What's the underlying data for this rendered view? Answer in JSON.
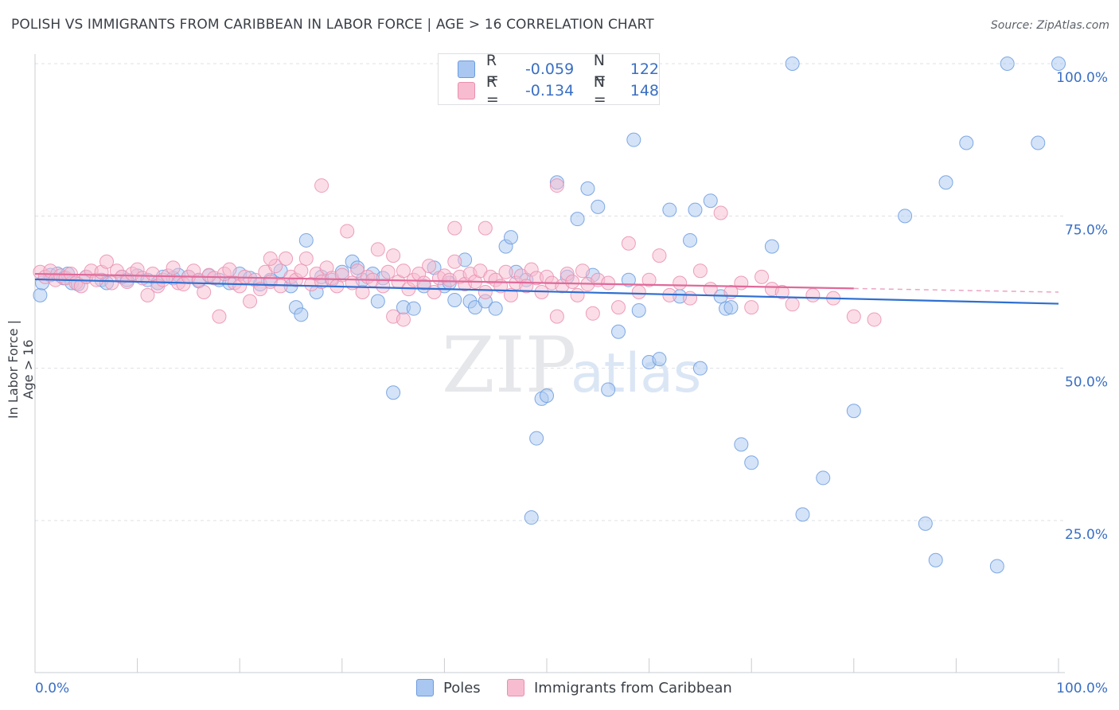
{
  "header": {
    "title": "POLISH VS IMMIGRANTS FROM CARIBBEAN IN LABOR FORCE | AGE > 16 CORRELATION CHART",
    "source": "Source: ZipAtlas.com"
  },
  "watermark": {
    "part1": "ZIP",
    "part2": "atlas"
  },
  "legend": {
    "rows": [
      {
        "r_label": "R =",
        "r_value": "-0.059",
        "n_label": "N =",
        "n_value": "122",
        "color": "#a9c7f0",
        "border": "#6b9be0"
      },
      {
        "r_label": "R =",
        "r_value": "-0.134",
        "n_label": "N =",
        "n_value": "148",
        "color": "#f7bcd0",
        "border": "#ea8fb0"
      }
    ]
  },
  "bottom_legend": [
    {
      "label": "Poles",
      "color": "#a9c7f0",
      "border": "#6b9be0"
    },
    {
      "label": "Immigrants from Caribbean",
      "color": "#f7bcd0",
      "border": "#ea8fb0"
    }
  ],
  "chart_data": {
    "type": "scatter",
    "title": "POLISH VS IMMIGRANTS FROM CARIBBEAN IN LABOR FORCE | AGE > 16 CORRELATION CHART",
    "ylabel": "In Labor Force | Age > 16",
    "xlabel": "",
    "xlim": [
      0,
      100
    ],
    "ylim": [
      0,
      102
    ],
    "x_tick_labels": [
      "0.0%",
      "100.0%"
    ],
    "y_ticks": [
      25,
      50,
      75,
      100
    ],
    "y_tick_labels": [
      "25.0%",
      "50.0%",
      "75.0%",
      "100.0%"
    ],
    "grid": true,
    "legend_position": "top-center",
    "series": [
      {
        "name": "Poles",
        "color": "#6b9be0",
        "fill": "#a9c7f0",
        "trend": {
          "x": [
            0,
            100
          ],
          "y": [
            64.6,
            60.6
          ],
          "dashed_from": null
        },
        "points": [
          [
            0.5,
            62
          ],
          [
            0.7,
            64
          ],
          [
            1.5,
            65.3
          ],
          [
            2.2,
            65.5
          ],
          [
            2.8,
            64.8
          ],
          [
            3.2,
            65.5
          ],
          [
            3.6,
            64
          ],
          [
            4.2,
            63.8
          ],
          [
            5,
            65
          ],
          [
            6.5,
            64.5
          ],
          [
            7,
            64
          ],
          [
            8.5,
            65
          ],
          [
            9,
            64.5
          ],
          [
            10,
            65.2
          ],
          [
            11,
            64.5
          ],
          [
            12,
            64
          ],
          [
            12.5,
            65
          ],
          [
            13.5,
            64.8
          ],
          [
            14,
            65.3
          ],
          [
            15,
            65
          ],
          [
            16,
            64.3
          ],
          [
            17,
            65.2
          ],
          [
            18,
            64.5
          ],
          [
            19,
            64
          ],
          [
            20,
            65.5
          ],
          [
            21,
            64.8
          ],
          [
            22,
            63.8
          ],
          [
            23,
            64.5
          ],
          [
            24,
            66
          ],
          [
            25,
            63.5
          ],
          [
            25.5,
            60
          ],
          [
            26,
            58.8
          ],
          [
            26.5,
            71
          ],
          [
            27.5,
            62.5
          ],
          [
            28,
            65
          ],
          [
            29,
            64.5
          ],
          [
            30,
            65.8
          ],
          [
            31,
            67.5
          ],
          [
            31.5,
            66.5
          ],
          [
            32,
            64.5
          ],
          [
            33,
            65.5
          ],
          [
            33.5,
            61
          ],
          [
            34,
            64.8
          ],
          [
            35,
            46
          ],
          [
            36,
            60
          ],
          [
            37,
            59.8
          ],
          [
            38,
            63.5
          ],
          [
            39,
            66.5
          ],
          [
            40,
            63.5
          ],
          [
            40.5,
            64
          ],
          [
            41,
            61.2
          ],
          [
            42,
            67.8
          ],
          [
            42.5,
            61
          ],
          [
            43,
            60
          ],
          [
            44,
            61
          ],
          [
            45,
            59.8
          ],
          [
            46,
            70
          ],
          [
            46.5,
            71.5
          ],
          [
            47,
            65.8
          ],
          [
            48,
            64.5
          ],
          [
            48.5,
            25.5
          ],
          [
            49,
            38.5
          ],
          [
            49.5,
            45
          ],
          [
            50,
            45.5
          ],
          [
            51,
            80.5
          ],
          [
            52,
            65
          ],
          [
            53,
            74.5
          ],
          [
            54,
            79.5
          ],
          [
            54.5,
            65.3
          ],
          [
            55,
            76.5
          ],
          [
            56,
            46.5
          ],
          [
            57,
            56
          ],
          [
            58,
            64.5
          ],
          [
            58.5,
            87.5
          ],
          [
            59,
            59.5
          ],
          [
            60,
            51
          ],
          [
            61,
            51.5
          ],
          [
            62,
            76
          ],
          [
            63,
            61.8
          ],
          [
            64,
            71
          ],
          [
            64.5,
            76
          ],
          [
            65,
            50
          ],
          [
            66,
            77.5
          ],
          [
            67,
            61.8
          ],
          [
            67.5,
            59.8
          ],
          [
            68,
            60
          ],
          [
            69,
            37.5
          ],
          [
            70,
            34.5
          ],
          [
            72,
            70
          ],
          [
            75,
            26
          ],
          [
            77,
            32
          ],
          [
            80,
            43
          ],
          [
            85,
            75
          ],
          [
            87,
            24.5
          ],
          [
            88,
            18.5
          ],
          [
            89,
            80.5
          ],
          [
            91,
            87
          ],
          [
            94,
            17.5
          ],
          [
            98,
            87
          ],
          [
            74,
            100
          ],
          [
            95,
            100
          ],
          [
            100,
            100
          ]
        ]
      },
      {
        "name": "Immigrants from Caribbean",
        "color": "#ea8fb0",
        "fill": "#f7bcd0",
        "trend": {
          "x": [
            0,
            100
          ],
          "y": [
            65.5,
            62.5
          ],
          "dashed_from": 80
        },
        "points": [
          [
            0.5,
            65.8
          ],
          [
            1,
            65
          ],
          [
            1.5,
            66
          ],
          [
            2,
            64.5
          ],
          [
            2.5,
            65.2
          ],
          [
            3,
            64.8
          ],
          [
            3.5,
            65.5
          ],
          [
            4,
            64
          ],
          [
            4.5,
            63.5
          ],
          [
            5,
            65
          ],
          [
            5.5,
            66
          ],
          [
            6,
            64.5
          ],
          [
            6.5,
            65.8
          ],
          [
            7,
            67.5
          ],
          [
            7.5,
            64
          ],
          [
            8,
            66
          ],
          [
            8.5,
            65
          ],
          [
            9,
            64.2
          ],
          [
            9.5,
            65.5
          ],
          [
            10,
            66.2
          ],
          [
            10.5,
            64.8
          ],
          [
            11,
            62
          ],
          [
            11.5,
            65.5
          ],
          [
            12,
            63.5
          ],
          [
            12.5,
            64.5
          ],
          [
            13,
            65.2
          ],
          [
            13.5,
            66.5
          ],
          [
            14,
            64
          ],
          [
            14.5,
            63.8
          ],
          [
            15,
            65
          ],
          [
            15.5,
            66
          ],
          [
            16,
            64.5
          ],
          [
            16.5,
            62.5
          ],
          [
            17,
            65.3
          ],
          [
            17.5,
            64.8
          ],
          [
            18,
            58.5
          ],
          [
            18.5,
            65.5
          ],
          [
            19,
            66.2
          ],
          [
            19.5,
            64
          ],
          [
            20,
            63.5
          ],
          [
            20.5,
            65
          ],
          [
            21,
            61
          ],
          [
            21.5,
            64.5
          ],
          [
            22,
            63
          ],
          [
            22.5,
            65.8
          ],
          [
            23,
            64.2
          ],
          [
            23.5,
            66.8
          ],
          [
            24,
            63.5
          ],
          [
            24.5,
            68
          ],
          [
            25,
            65
          ],
          [
            25.5,
            64.5
          ],
          [
            26,
            66
          ],
          [
            26.5,
            68
          ],
          [
            27,
            63.8
          ],
          [
            27.5,
            65.5
          ],
          [
            28,
            64.2
          ],
          [
            28.5,
            66.5
          ],
          [
            29,
            64.8
          ],
          [
            29.5,
            63.5
          ],
          [
            30,
            65.3
          ],
          [
            30.5,
            72.5
          ],
          [
            31,
            64
          ],
          [
            31.5,
            66
          ],
          [
            32,
            62.5
          ],
          [
            32.5,
            65
          ],
          [
            33,
            64.5
          ],
          [
            33.5,
            69.5
          ],
          [
            34,
            63.5
          ],
          [
            34.5,
            65.8
          ],
          [
            35,
            58.5
          ],
          [
            35.5,
            64.2
          ],
          [
            36,
            66
          ],
          [
            36.5,
            63
          ],
          [
            37,
            64.5
          ],
          [
            37.5,
            65.5
          ],
          [
            38,
            64
          ],
          [
            38.5,
            66.8
          ],
          [
            39,
            62.5
          ],
          [
            39.5,
            64.8
          ],
          [
            40,
            65.2
          ],
          [
            40.5,
            64.5
          ],
          [
            41,
            67.5
          ],
          [
            41.5,
            65
          ],
          [
            42,
            63.8
          ],
          [
            42.5,
            65.5
          ],
          [
            43,
            64.2
          ],
          [
            43.5,
            66
          ],
          [
            44,
            62.5
          ],
          [
            44.5,
            65
          ],
          [
            45,
            64.5
          ],
          [
            45.5,
            63.5
          ],
          [
            46,
            65.8
          ],
          [
            46.5,
            62
          ],
          [
            47,
            64
          ],
          [
            47.5,
            65.2
          ],
          [
            48,
            63.5
          ],
          [
            48.5,
            66.2
          ],
          [
            49,
            64.8
          ],
          [
            49.5,
            62.5
          ],
          [
            50,
            65
          ],
          [
            50.5,
            64
          ],
          [
            51,
            58.5
          ],
          [
            51.5,
            63.5
          ],
          [
            52,
            65.5
          ],
          [
            52.5,
            64.2
          ],
          [
            53,
            62
          ],
          [
            53.5,
            66
          ],
          [
            54,
            63.8
          ],
          [
            54.5,
            59
          ],
          [
            55,
            64.5
          ],
          [
            56,
            64
          ],
          [
            57,
            60
          ],
          [
            58,
            70.5
          ],
          [
            59,
            62.5
          ],
          [
            60,
            64.5
          ],
          [
            61,
            68.5
          ],
          [
            62,
            62
          ],
          [
            63,
            64
          ],
          [
            64,
            61.5
          ],
          [
            65,
            66
          ],
          [
            66,
            63
          ],
          [
            67,
            75.5
          ],
          [
            68,
            62.5
          ],
          [
            69,
            64
          ],
          [
            70,
            60
          ],
          [
            71,
            65
          ],
          [
            72,
            63
          ],
          [
            73,
            62.5
          ],
          [
            74,
            60.5
          ],
          [
            76,
            62
          ],
          [
            78,
            61.5
          ],
          [
            80,
            58.5
          ],
          [
            82,
            58
          ],
          [
            28,
            80
          ],
          [
            41,
            73
          ],
          [
            44,
            73
          ],
          [
            51,
            80
          ],
          [
            35,
            68.5
          ],
          [
            23,
            68
          ],
          [
            36,
            58
          ]
        ]
      }
    ]
  }
}
